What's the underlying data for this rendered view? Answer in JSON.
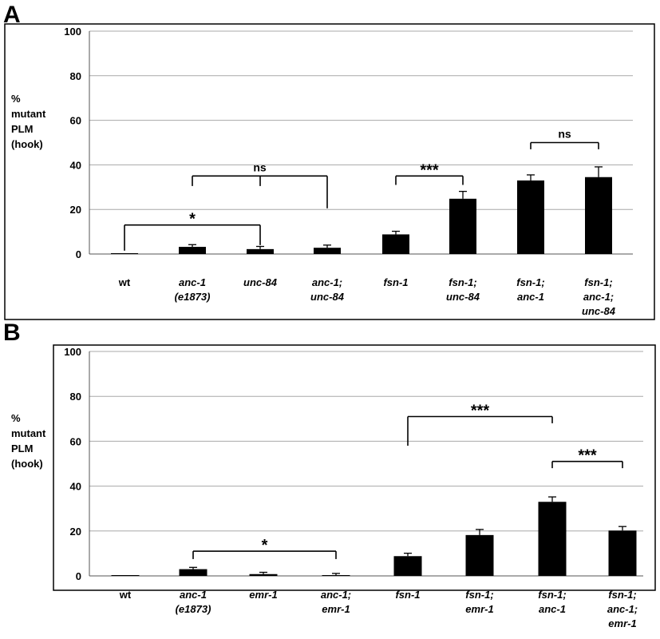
{
  "chart_data": [
    {
      "panel_label": "A",
      "type": "bar",
      "ylabel": [
        "%",
        "mutant",
        "PLM",
        "(hook)"
      ],
      "ylim": [
        0,
        100
      ],
      "yticks": [
        0,
        20,
        40,
        60,
        80,
        100
      ],
      "grid": true,
      "categories": [
        [
          "wt"
        ],
        [
          "anc-1",
          "(e1873)"
        ],
        [
          "unc-84"
        ],
        [
          "anc-1;",
          "unc-84"
        ],
        [
          "fsn-1"
        ],
        [
          "fsn-1;",
          "unc-84"
        ],
        [
          "fsn-1;",
          "anc-1"
        ],
        [
          "fsn-1;",
          "anc-1;",
          "unc-84"
        ]
      ],
      "values": [
        0.2,
        3.2,
        2.2,
        2.8,
        8.8,
        24.8,
        33.0,
        34.5
      ],
      "errors": [
        0,
        1.0,
        1.2,
        1.2,
        1.4,
        3.3,
        2.5,
        4.6
      ],
      "brackets": [
        {
          "label": "*",
          "from": 0,
          "to": 2,
          "y": 13,
          "drops": [
            0,
            2
          ],
          "drop_to": [
            1.5,
            4.0
          ]
        },
        {
          "label": "ns",
          "from": 1,
          "to": 3,
          "y": 35,
          "drops": [
            1,
            2,
            3
          ],
          "drop_to": [
            30.5,
            30.5,
            20.5
          ]
        },
        {
          "label": "***",
          "from": 4,
          "to": 5,
          "y": 35,
          "drops": [
            4,
            5
          ],
          "drop_to": [
            31,
            31
          ]
        },
        {
          "label": "ns",
          "from": 6,
          "to": 7,
          "y": 50,
          "drops": [
            6,
            7
          ],
          "drop_to": [
            47,
            47
          ]
        }
      ]
    },
    {
      "panel_label": "B",
      "type": "bar",
      "ylabel": [
        "%",
        "mutant",
        "PLM",
        "(hook)"
      ],
      "ylim": [
        0,
        100
      ],
      "yticks": [
        0,
        20,
        40,
        60,
        80,
        100
      ],
      "grid": true,
      "categories": [
        [
          "wt"
        ],
        [
          "anc-1",
          "(e1873)"
        ],
        [
          "emr-1"
        ],
        [
          "anc-1;",
          "emr-1"
        ],
        [
          "fsn-1"
        ],
        [
          "fsn-1;",
          "emr-1"
        ],
        [
          "fsn-1;",
          "anc-1"
        ],
        [
          "fsn-1;",
          "anc-1;",
          "emr-1"
        ]
      ],
      "values": [
        0.2,
        3.0,
        0.8,
        0.3,
        8.8,
        18.2,
        33.0,
        20.2
      ],
      "errors": [
        0,
        0.8,
        0.8,
        0.8,
        1.3,
        2.5,
        2.2,
        1.8
      ],
      "brackets": [
        {
          "label": "*",
          "from": 1,
          "to": 3,
          "y": 11,
          "drops": [
            1,
            3
          ],
          "drop_to": [
            7.5,
            7.5
          ]
        },
        {
          "label": "***",
          "from": 4,
          "to": 6,
          "y": 71,
          "drops": [
            4,
            6
          ],
          "drop_to": [
            58,
            68
          ]
        },
        {
          "label": "***",
          "from": 6,
          "to": 7,
          "y": 51,
          "drops": [
            6,
            7
          ],
          "drop_to": [
            48,
            48
          ]
        }
      ]
    }
  ]
}
